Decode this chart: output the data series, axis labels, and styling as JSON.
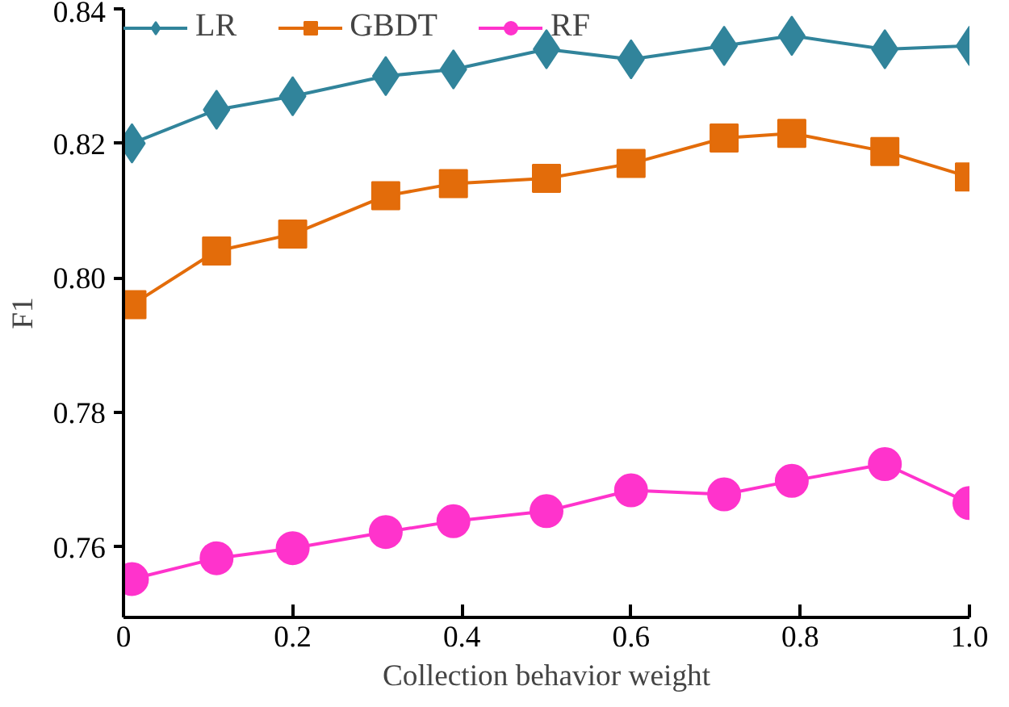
{
  "chart_data": {
    "type": "line",
    "xlabel": "Collection behavior weight",
    "ylabel": "F1",
    "xlim": [
      0,
      1.0
    ],
    "ylim": [
      0.7495,
      0.84
    ],
    "xticks": [
      0,
      0.2,
      0.4,
      0.6,
      0.8,
      {
        "value": 1.0,
        "label": "1.0"
      }
    ],
    "yticks": [
      0.76,
      0.78,
      {
        "value": 0.8,
        "label": "0.80"
      },
      0.82,
      0.84
    ],
    "x": [
      0.01,
      0.11,
      0.2,
      0.31,
      0.39,
      0.5,
      0.6,
      0.71,
      0.79,
      0.9,
      1.0
    ],
    "grid": false,
    "legend": "top left",
    "line_style": "solid",
    "series": [
      {
        "name": "LR",
        "color": "#31849b",
        "marker": "diamond",
        "values": [
          0.82,
          0.825,
          0.827,
          0.83,
          0.831,
          0.834,
          0.8325,
          0.8345,
          0.836,
          0.834,
          0.8345
        ]
      },
      {
        "name": "GBDT",
        "color": "#e36c0a",
        "marker": "square",
        "values": [
          0.796,
          0.804,
          0.8065,
          0.8122,
          0.814,
          0.8148,
          0.817,
          0.8208,
          0.8215,
          0.8188,
          0.815
        ]
      },
      {
        "name": "RF",
        "color": "#ff33cc",
        "marker": "circle",
        "values": [
          0.7552,
          0.7583,
          0.7598,
          0.7622,
          0.7638,
          0.7653,
          0.7684,
          0.7678,
          0.7698,
          0.7723,
          0.7665
        ]
      }
    ]
  }
}
